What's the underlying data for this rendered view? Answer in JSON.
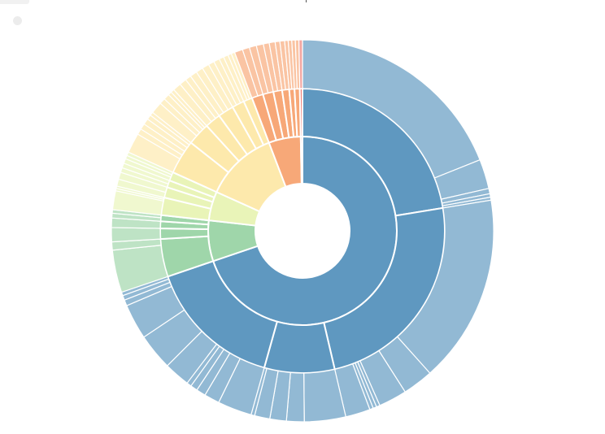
{
  "chart_data": {
    "type": "sunburst",
    "title": "",
    "root": {
      "children": [
        {
          "color": "#5f98c0",
          "value": 70.0,
          "children": [
            {
              "value": 22.5,
              "children": [
                {
                  "value": 19.0
                },
                {
                  "value": 2.5
                },
                {
                  "value": 0.45
                },
                {
                  "value": 0.3
                },
                {
                  "value": 0.25
                }
              ]
            },
            {
              "value": 24.0,
              "children": [
                {
                  "value": 16.0
                },
                {
                  "value": 2.6
                },
                {
                  "value": 2.4
                },
                {
                  "value": 0.3
                },
                {
                  "value": 0.3
                },
                {
                  "value": 0.3
                },
                {
                  "value": 2.1
                }
              ]
            },
            {
              "value": 8.0,
              "children": [
                {
                  "value": 3.5
                },
                {
                  "value": 1.5
                },
                {
                  "value": 1.4
                },
                {
                  "value": 1.3
                },
                {
                  "value": 0.3
                }
              ]
            },
            {
              "value": 15.5,
              "children": [
                {
                  "value": 2.9
                },
                {
                  "value": 1.3
                },
                {
                  "value": 0.8
                },
                {
                  "value": 0.6
                },
                {
                  "value": 0.4
                },
                {
                  "value": 2.2
                },
                {
                  "value": 3.1
                },
                {
                  "value": 3.0
                },
                {
                  "value": 0.5
                },
                {
                  "value": 0.4
                },
                {
                  "value": 0.3
                }
              ]
            }
          ]
        },
        {
          "color": "#9fd6aa",
          "value": 7.0,
          "children": [
            {
              "value": 4.3,
              "children": [
                {
                  "value": 3.6
                },
                {
                  "value": 0.7
                }
              ]
            },
            {
              "value": 1.2,
              "children": [
                {
                  "value": 1.2
                }
              ]
            },
            {
              "value": 0.8,
              "children": [
                {
                  "value": 0.8
                }
              ]
            },
            {
              "value": 0.7,
              "children": [
                {
                  "value": 0.4
                },
                {
                  "value": 0.3
                }
              ]
            }
          ]
        },
        {
          "color": "#e9f4b8",
          "value": 5.0,
          "children": [
            {
              "value": 2.0,
              "children": [
                {
                  "value": 1.6
                },
                {
                  "value": 0.2
                },
                {
                  "value": 0.2
                }
              ]
            },
            {
              "value": 1.2,
              "children": [
                {
                  "value": 0.6
                },
                {
                  "value": 0.6
                }
              ]
            },
            {
              "value": 0.8,
              "children": [
                {
                  "value": 0.4
                },
                {
                  "value": 0.4
                }
              ]
            },
            {
              "value": 1.0,
              "children": [
                {
                  "value": 0.4
                },
                {
                  "value": 0.3
                },
                {
                  "value": 0.3
                }
              ]
            }
          ]
        },
        {
          "color": "#fde9ac",
          "value": 12.5,
          "children": [
            {
              "value": 3.9,
              "children": [
                {
                  "value": 1.7
                },
                {
                  "value": 0.5
                },
                {
                  "value": 0.5
                },
                {
                  "value": 0.5
                },
                {
                  "value": 0.4
                },
                {
                  "value": 0.3
                }
              ]
            },
            {
              "value": 2.6,
              "children": [
                {
                  "value": 1.0
                },
                {
                  "value": 0.5
                },
                {
                  "value": 0.5
                },
                {
                  "value": 0.3
                },
                {
                  "value": 0.3
                }
              ]
            },
            {
              "value": 1.8,
              "children": [
                {
                  "value": 0.7
                },
                {
                  "value": 0.6
                },
                {
                  "value": 0.5
                }
              ]
            },
            {
              "value": 1.8,
              "children": [
                {
                  "value": 0.6
                },
                {
                  "value": 0.6
                },
                {
                  "value": 0.6
                }
              ]
            },
            {
              "value": 1.4,
              "children": [
                {
                  "value": 0.5
                },
                {
                  "value": 0.5
                },
                {
                  "value": 0.4
                }
              ]
            },
            {
              "value": 1.0,
              "children": [
                {
                  "value": 0.4
                },
                {
                  "value": 0.3
                },
                {
                  "value": 0.3
                }
              ]
            }
          ]
        },
        {
          "color": "#f7a878",
          "value": 5.5,
          "children": [
            {
              "value": 1.3,
              "children": [
                {
                  "value": 0.7
                },
                {
                  "value": 0.6
                }
              ]
            },
            {
              "value": 1.2,
              "children": [
                {
                  "value": 0.6
                },
                {
                  "value": 0.6
                }
              ]
            },
            {
              "value": 1.0,
              "children": [
                {
                  "value": 0.5
                },
                {
                  "value": 0.5
                }
              ]
            },
            {
              "value": 0.8,
              "children": [
                {
                  "value": 0.4
                },
                {
                  "value": 0.4
                }
              ]
            },
            {
              "value": 0.6,
              "children": [
                {
                  "value": 0.3
                },
                {
                  "value": 0.3
                }
              ]
            },
            {
              "value": 0.6,
              "children": [
                {
                  "value": 0.3
                },
                {
                  "value": 0.3
                }
              ]
            }
          ]
        },
        {
          "color": "#ef7f77",
          "value": 0.3,
          "children": [
            {
              "value": 0.3,
              "children": [
                {
                  "value": 0.3
                }
              ]
            }
          ]
        }
      ]
    }
  }
}
